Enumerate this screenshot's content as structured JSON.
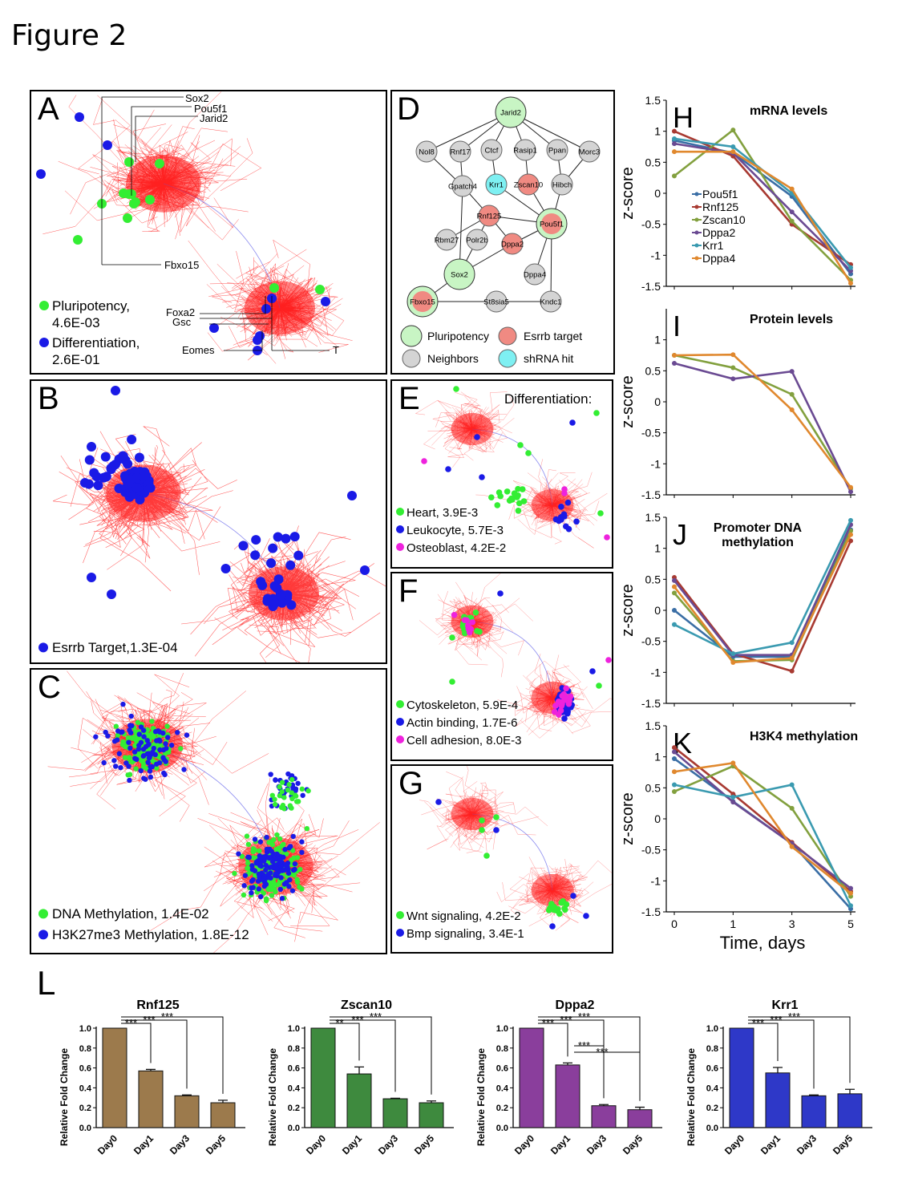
{
  "figure_title": "Figure 2",
  "colors": {
    "edge": "#ff2020",
    "pluri": "#33ee33",
    "diff": "#1a1ae6",
    "magenta": "#ee22dd",
    "Pou5f1": "#3a6ea5",
    "Rnf125": "#a83a32",
    "Zscan10": "#82a03e",
    "Dppa2": "#6a4a92",
    "Krr1": "#3a9ab0",
    "Dppa4": "#e0882e",
    "bar_Rnf125": "#9c7a4c",
    "bar_Zscan10": "#3e8a3e",
    "bar_Dppa2": "#8a3e9c",
    "bar_Krr1": "#2e38c8"
  },
  "panelA": {
    "label": "A",
    "genes_top": [
      "Sox2",
      "Pou5f1",
      "Jarid2"
    ],
    "gene_fbxo15": "Fbxo15",
    "genes_right": [
      "Foxa2",
      "Gsc",
      "Eomes",
      "T"
    ],
    "legend": [
      {
        "text1": "Pluripotency,",
        "text2": "4.6E-03",
        "color": "#33ee33"
      },
      {
        "text1": "Differentiation,",
        "text2": "2.6E-01",
        "color": "#1a1ae6"
      }
    ]
  },
  "panelB": {
    "label": "B",
    "legend": [
      {
        "text": "Esrrb Target,1.3E-04",
        "color": "#1a1ae6"
      }
    ]
  },
  "panelC": {
    "label": "C",
    "legend": [
      {
        "text": "DNA Methylation, 1.4E-02",
        "color": "#33ee33"
      },
      {
        "text": "H3K27me3 Methylation, 1.8E-12",
        "color": "#1a1ae6"
      }
    ]
  },
  "panelD": {
    "label": "D",
    "nodes": [
      {
        "id": "Jarid2",
        "type": "pluri"
      },
      {
        "id": "Nol8",
        "type": "neighbor"
      },
      {
        "id": "Rnf17",
        "type": "neighbor"
      },
      {
        "id": "Ctcf",
        "type": "neighbor"
      },
      {
        "id": "Rasip1",
        "type": "neighbor"
      },
      {
        "id": "Ppan",
        "type": "neighbor"
      },
      {
        "id": "Morc3",
        "type": "neighbor"
      },
      {
        "id": "Gpatch4",
        "type": "neighbor"
      },
      {
        "id": "Krr1",
        "type": "shrna"
      },
      {
        "id": "Zscan10",
        "type": "esrrb"
      },
      {
        "id": "Hibch",
        "type": "neighbor"
      },
      {
        "id": "Rnf125",
        "type": "esrrb"
      },
      {
        "id": "Pou5f1",
        "type": "pluri_esrrb"
      },
      {
        "id": "Rbm27",
        "type": "neighbor"
      },
      {
        "id": "Polr2b",
        "type": "neighbor"
      },
      {
        "id": "Dppa2",
        "type": "esrrb"
      },
      {
        "id": "Sox2",
        "type": "pluri"
      },
      {
        "id": "Dppa4",
        "type": "neighbor"
      },
      {
        "id": "Fbxo15",
        "type": "pluri_esrrb"
      },
      {
        "id": "St8sia5",
        "type": "neighbor"
      },
      {
        "id": "Kndc1",
        "type": "neighbor"
      }
    ],
    "legend": [
      {
        "text": "Pluripotency",
        "type": "pluri"
      },
      {
        "text": "Esrrb target",
        "type": "esrrb"
      },
      {
        "text": "Neighbors",
        "type": "neighbor"
      },
      {
        "text": "shRNA hit",
        "type": "shrna"
      }
    ]
  },
  "panelE": {
    "label": "E",
    "title": "Differentiation:",
    "legend": [
      {
        "text": "Heart, 3.9E-3",
        "color": "#33ee33"
      },
      {
        "text": "Leukocyte, 5.7E-3",
        "color": "#1a1ae6"
      },
      {
        "text": "Osteoblast, 4.2E-2",
        "color": "#ee22dd"
      }
    ]
  },
  "panelF": {
    "label": "F",
    "legend": [
      {
        "text": "Cytoskeleton, 5.9E-4",
        "color": "#33ee33"
      },
      {
        "text": "Actin binding, 1.7E-6",
        "color": "#1a1ae6"
      },
      {
        "text": "Cell adhesion, 8.0E-3",
        "color": "#ee22dd"
      }
    ]
  },
  "panelG": {
    "label": "G",
    "legend": [
      {
        "text": "Wnt signaling, 4.2E-2",
        "color": "#33ee33"
      },
      {
        "text": "Bmp signaling, 3.4E-1",
        "color": "#1a1ae6"
      }
    ]
  },
  "chart_data": [
    {
      "id": "H",
      "type": "line",
      "title": "mRNA levels",
      "ylabel": "z-score",
      "x": [
        0,
        1,
        3,
        5
      ],
      "ylim": [
        -1.5,
        1.5
      ],
      "yticks": [
        "1.5",
        "1",
        "0.5",
        "0",
        "-0.5",
        "-1",
        "-1.5"
      ],
      "series": [
        {
          "name": "Pou5f1",
          "values": [
            0.85,
            0.65,
            -0.05,
            -1.3
          ]
        },
        {
          "name": "Rnf125",
          "values": [
            1.0,
            0.6,
            -0.5,
            -1.15
          ]
        },
        {
          "name": "Zscan10",
          "values": [
            0.28,
            1.02,
            -0.45,
            -1.4
          ]
        },
        {
          "name": "Dppa2",
          "values": [
            0.8,
            0.65,
            -0.3,
            -1.25
          ]
        },
        {
          "name": "Krr1",
          "values": [
            0.88,
            0.75,
            0.0,
            -1.2
          ]
        },
        {
          "name": "Dppa4",
          "values": [
            0.67,
            0.67,
            0.07,
            -1.45
          ]
        }
      ],
      "legend": true
    },
    {
      "id": "I",
      "type": "line",
      "title": "Protein levels",
      "ylabel": "z-score",
      "x": [
        0,
        1,
        3,
        5
      ],
      "ylim": [
        -1.5,
        1.5
      ],
      "yticks": [
        "1",
        "0.5",
        "0",
        "-0.5",
        "-1",
        "-1.5"
      ],
      "series": [
        {
          "name": "Zscan10",
          "values": [
            0.75,
            0.55,
            0.12,
            -1.4
          ]
        },
        {
          "name": "Dppa2",
          "values": [
            0.62,
            0.37,
            0.49,
            -1.45
          ]
        },
        {
          "name": "Dppa4",
          "values": [
            0.75,
            0.76,
            -0.13,
            -1.38
          ]
        }
      ]
    },
    {
      "id": "J",
      "type": "line",
      "title": "Promoter DNA",
      "title2": "methylation",
      "ylabel": "z-score",
      "x": [
        0,
        1,
        3,
        5
      ],
      "ylim": [
        -1.5,
        1.5
      ],
      "yticks": [
        "1.5",
        "1",
        "0.5",
        "0",
        "-0.5",
        "-1",
        "-1.5"
      ],
      "series": [
        {
          "name": "Pou5f1",
          "values": [
            0.0,
            -0.75,
            -0.75,
            1.3
          ]
        },
        {
          "name": "Rnf125",
          "values": [
            0.53,
            -0.7,
            -0.98,
            1.12
          ]
        },
        {
          "name": "Zscan10",
          "values": [
            0.28,
            -0.82,
            -0.8,
            1.28
          ]
        },
        {
          "name": "Dppa2",
          "values": [
            0.48,
            -0.72,
            -0.72,
            1.38
          ]
        },
        {
          "name": "Krr1",
          "values": [
            -0.23,
            -0.7,
            -0.52,
            1.45
          ]
        },
        {
          "name": "Dppa4",
          "values": [
            0.38,
            -0.84,
            -0.77,
            1.22
          ]
        }
      ]
    },
    {
      "id": "K",
      "type": "line",
      "title": "H3K4 methylation",
      "ylabel": "z-score",
      "xlabel": "Time, days",
      "x": [
        0,
        1,
        3,
        5
      ],
      "ylim": [
        -1.5,
        1.5
      ],
      "yticks": [
        "1.5",
        "1",
        "0.5",
        "0",
        "-0.5",
        "-1",
        "-1.5"
      ],
      "series": [
        {
          "name": "Pou5f1",
          "values": [
            0.97,
            0.28,
            -0.4,
            -1.45
          ]
        },
        {
          "name": "Rnf125",
          "values": [
            1.15,
            0.4,
            -0.38,
            -1.17
          ]
        },
        {
          "name": "Zscan10",
          "values": [
            0.44,
            0.85,
            0.17,
            -1.25
          ]
        },
        {
          "name": "Dppa2",
          "values": [
            1.08,
            0.27,
            -0.4,
            -1.12
          ]
        },
        {
          "name": "Krr1",
          "values": [
            0.55,
            0.35,
            0.55,
            -1.4
          ]
        },
        {
          "name": "Dppa4",
          "values": [
            0.76,
            0.9,
            -0.45,
            -1.2
          ]
        }
      ]
    },
    {
      "id": "L1",
      "type": "bar",
      "title": "Rnf125",
      "ylabel": "Relative Fold Change",
      "categories": [
        "Day0",
        "Day1",
        "Day3",
        "Day5"
      ],
      "values": [
        1.0,
        0.57,
        0.32,
        0.25
      ],
      "errors": [
        0,
        0.015,
        0.008,
        0.025
      ],
      "ylim": [
        0,
        1.0
      ],
      "yticks": [
        "0.0",
        "0.2",
        "0.4",
        "0.6",
        "0.8",
        "1.0"
      ],
      "sig": [
        {
          "from": 0,
          "to": 1,
          "text": "***"
        },
        {
          "from": 0,
          "to": 2,
          "text": "***"
        },
        {
          "from": 0,
          "to": 3,
          "text": "***"
        }
      ]
    },
    {
      "id": "L2",
      "type": "bar",
      "title": "Zscan10",
      "ylabel": "Relative Fold Change",
      "categories": [
        "Day0",
        "Day1",
        "Day3",
        "Day5"
      ],
      "values": [
        1.0,
        0.54,
        0.29,
        0.25
      ],
      "errors": [
        0,
        0.07,
        0.005,
        0.018
      ],
      "ylim": [
        0,
        1.0
      ],
      "yticks": [
        "0.0",
        "0.2",
        "0.4",
        "0.6",
        "0.8",
        "1.0"
      ],
      "sig": [
        {
          "from": 0,
          "to": 1,
          "text": "**"
        },
        {
          "from": 0,
          "to": 2,
          "text": "***"
        },
        {
          "from": 0,
          "to": 3,
          "text": "***"
        }
      ]
    },
    {
      "id": "L3",
      "type": "bar",
      "title": "Dppa2",
      "ylabel": "Relative Fold Change",
      "categories": [
        "Day0",
        "Day1",
        "Day3",
        "Day5"
      ],
      "values": [
        1.0,
        0.63,
        0.22,
        0.18
      ],
      "errors": [
        0,
        0.02,
        0.012,
        0.025
      ],
      "ylim": [
        0,
        1.0
      ],
      "yticks": [
        "0.0",
        "0.2",
        "0.4",
        "0.6",
        "0.8",
        "1.0"
      ],
      "sig": [
        {
          "from": 0,
          "to": 1,
          "text": "***"
        },
        {
          "from": 0,
          "to": 2,
          "text": "***"
        },
        {
          "from": 0,
          "to": 3,
          "text": "***"
        },
        {
          "from": 1,
          "to": 2,
          "text": "***"
        },
        {
          "from": 1,
          "to": 3,
          "text": "***"
        }
      ]
    },
    {
      "id": "L4",
      "type": "bar",
      "title": "Krr1",
      "ylabel": "Relative Fold Change",
      "categories": [
        "Day0",
        "Day1",
        "Day3",
        "Day5"
      ],
      "values": [
        1.0,
        0.55,
        0.32,
        0.34
      ],
      "errors": [
        0,
        0.055,
        0.008,
        0.045
      ],
      "ylim": [
        0,
        1.0
      ],
      "yticks": [
        "0.0",
        "0.2",
        "0.4",
        "0.6",
        "0.8",
        "1.0"
      ],
      "sig": [
        {
          "from": 0,
          "to": 1,
          "text": "***"
        },
        {
          "from": 0,
          "to": 2,
          "text": "***"
        },
        {
          "from": 0,
          "to": 3,
          "text": "***"
        }
      ]
    }
  ],
  "panelL_label": "L"
}
